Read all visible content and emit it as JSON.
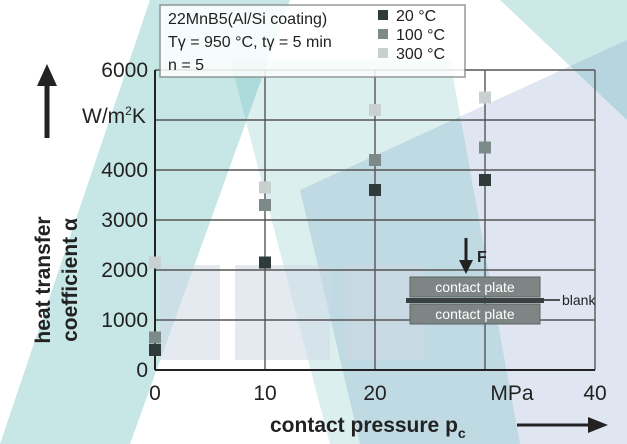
{
  "chart_data": {
    "type": "scatter",
    "xlabel_text": "contact pressure p",
    "xlabel_sub": "c",
    "ylabel_line1": "heat transfer",
    "ylabel_line2": "coefficient α",
    "yunit_text": "W/m",
    "yunit_sup": "2",
    "yunit_tail": "K",
    "xunit": "MPa",
    "xlim": [
      0,
      40
    ],
    "ylim": [
      0,
      6000
    ],
    "x_ticks": [
      0,
      10,
      20,
      40
    ],
    "y_ticks": [
      0,
      1000,
      2000,
      3000,
      4000,
      6000
    ],
    "grid": true,
    "legend": {
      "title_line1": "22MnB5(Al/Si coating)",
      "title_line2": "Tγ = 950 °C, tγ = 5 min",
      "title_line3": "n = 5"
    },
    "series": [
      {
        "name": "20 °C",
        "color": "#2f3b3b",
        "x": [
          0,
          10,
          20,
          30
        ],
        "y": [
          400,
          2150,
          3600,
          3800
        ]
      },
      {
        "name": "100 °C",
        "color": "#7c8a8a",
        "x": [
          0,
          10,
          20,
          30
        ],
        "y": [
          650,
          3300,
          4200,
          4450
        ]
      },
      {
        "name": "300 °C",
        "color": "#c9d0d0",
        "x": [
          0,
          10,
          20,
          30
        ],
        "y": [
          2150,
          3650,
          5200,
          5450
        ]
      }
    ],
    "inset": {
      "force_label": "F",
      "plate_top": "contact plate",
      "plate_bottom": "contact plate",
      "blank_label": "blank"
    }
  }
}
